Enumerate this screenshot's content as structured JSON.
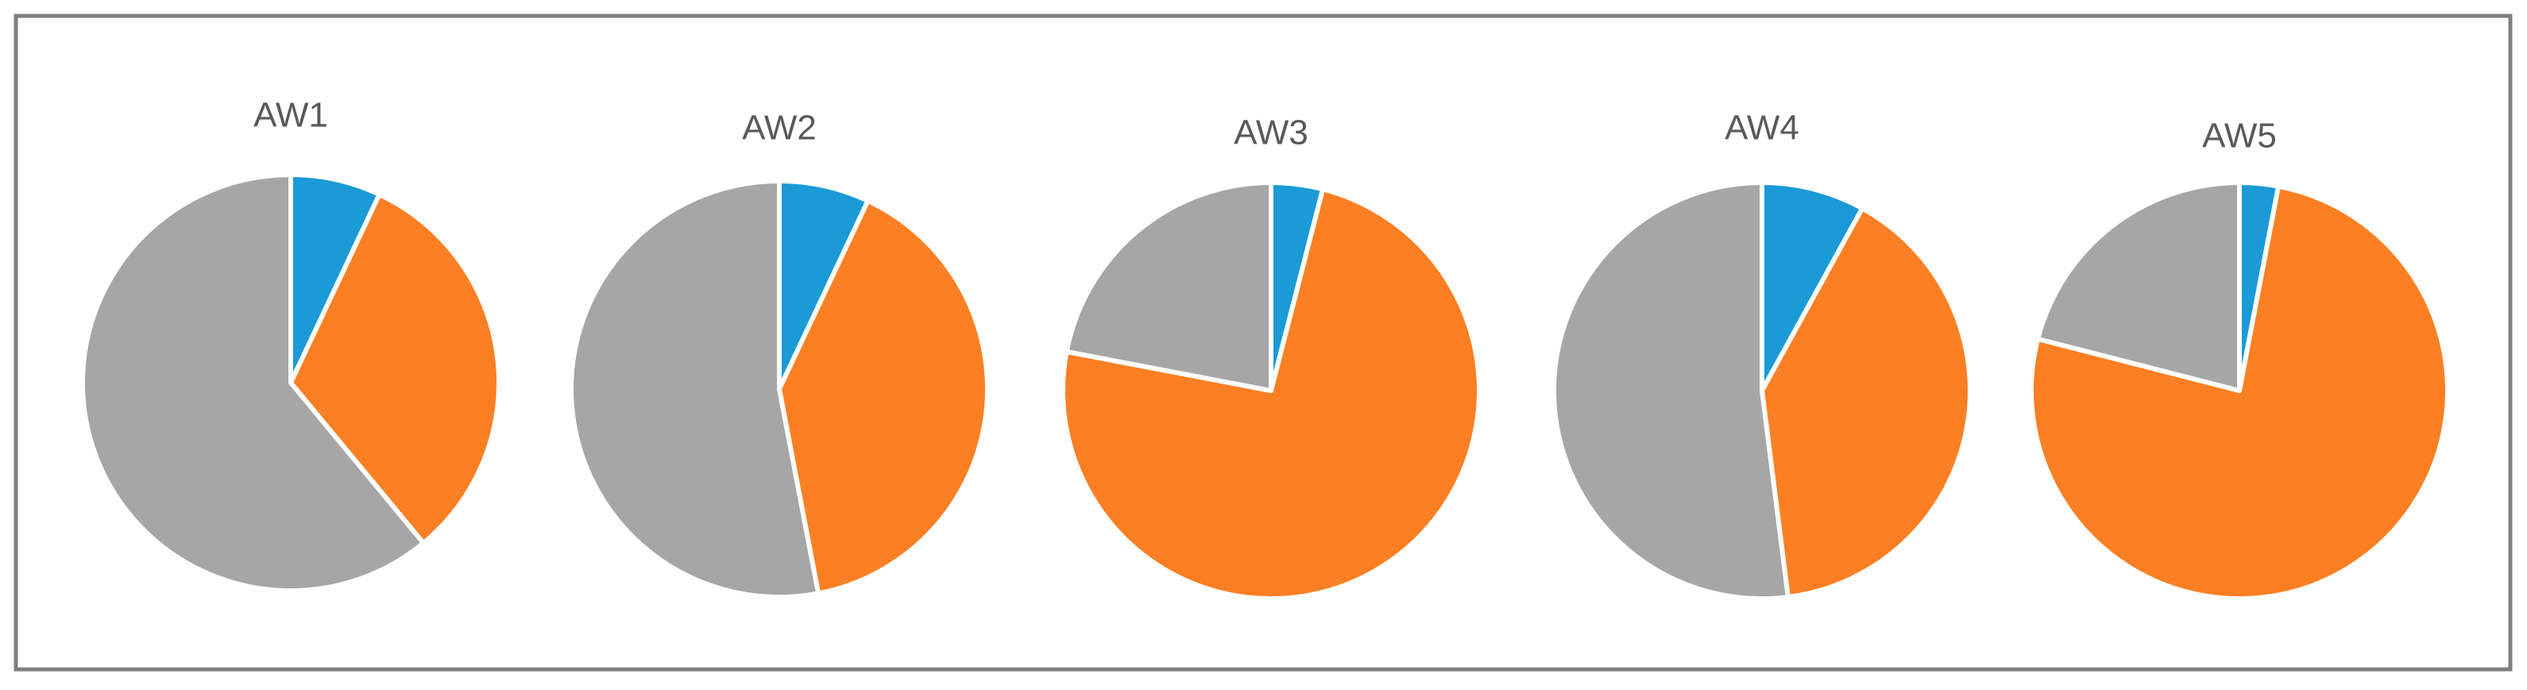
{
  "chart_data": [
    {
      "type": "pie",
      "title": "AW1",
      "values": [
        7,
        32,
        61
      ],
      "colors": [
        "#1a9ad6",
        "#fd7f23",
        "#a6a6a6"
      ]
    },
    {
      "type": "pie",
      "title": "AW2",
      "values": [
        7,
        40,
        53
      ],
      "colors": [
        "#1a9ad6",
        "#fd7f23",
        "#a6a6a6"
      ]
    },
    {
      "type": "pie",
      "title": "AW3",
      "values": [
        4,
        74,
        22
      ],
      "colors": [
        "#1a9ad6",
        "#fd7f23",
        "#a6a6a6"
      ]
    },
    {
      "type": "pie",
      "title": "AW4",
      "values": [
        8,
        40,
        52
      ],
      "colors": [
        "#1a9ad6",
        "#fd7f23",
        "#a6a6a6"
      ]
    },
    {
      "type": "pie",
      "title": "AW5",
      "values": [
        3,
        76,
        21
      ],
      "colors": [
        "#1a9ad6",
        "#fd7f23",
        "#a6a6a6"
      ]
    }
  ]
}
